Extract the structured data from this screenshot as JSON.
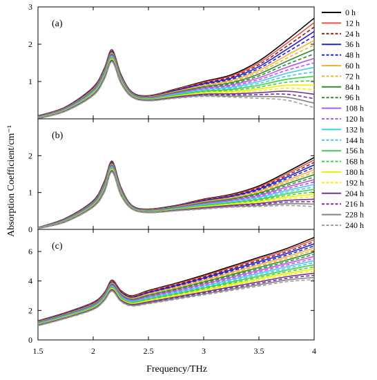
{
  "chart_data": {
    "type": "line",
    "xlabel": "Frequency/THz",
    "ylabel": "Absorption Coefficient/cm⁻¹",
    "xlim": [
      1.5,
      4
    ],
    "xticks": [
      "1.5",
      "2",
      "2.5",
      "3",
      "3.5",
      "4"
    ],
    "legend_position": "right",
    "series": [
      {
        "name": "0 h",
        "color": "#000000",
        "dash": "solid"
      },
      {
        "name": "12 h",
        "color": "#e8534a",
        "dash": "solid"
      },
      {
        "name": "24 h",
        "color": "#8b1a1a",
        "dash": "dashed"
      },
      {
        "name": "36 h",
        "color": "#1f1fd6",
        "dash": "solid"
      },
      {
        "name": "48 h",
        "color": "#1f1fd6",
        "dash": "dashed"
      },
      {
        "name": "60 h",
        "color": "#f0b030",
        "dash": "solid"
      },
      {
        "name": "72 h",
        "color": "#f0b030",
        "dash": "dashed"
      },
      {
        "name": "84 h",
        "color": "#2e8b2e",
        "dash": "solid"
      },
      {
        "name": "96 h",
        "color": "#2e8b2e",
        "dash": "dashed"
      },
      {
        "name": "108 h",
        "color": "#c050f0",
        "dash": "solid"
      },
      {
        "name": "120 h",
        "color": "#c050f0",
        "dash": "dashed"
      },
      {
        "name": "132 h",
        "color": "#40c8f0",
        "dash": "solid"
      },
      {
        "name": "144 h",
        "color": "#40c8f0",
        "dash": "dashed"
      },
      {
        "name": "156 h",
        "color": "#40d040",
        "dash": "solid"
      },
      {
        "name": "168 h",
        "color": "#40d040",
        "dash": "dashed"
      },
      {
        "name": "180 h",
        "color": "#f0f000",
        "dash": "solid"
      },
      {
        "name": "192 h",
        "color": "#f0f000",
        "dash": "dashed"
      },
      {
        "name": "204 h",
        "color": "#7030a0",
        "dash": "solid"
      },
      {
        "name": "216 h",
        "color": "#7030a0",
        "dash": "dashed"
      },
      {
        "name": "228 h",
        "color": "#808080",
        "dash": "solid"
      },
      {
        "name": "240 h",
        "color": "#a0a0a0",
        "dash": "dashed"
      }
    ],
    "panels": [
      {
        "label": "(a)",
        "ylim": [
          0,
          3
        ],
        "yticks": [
          "1",
          "2",
          "3"
        ],
        "peak_x": 2.17,
        "points_x": [
          1.5,
          1.75,
          2.0,
          2.1,
          2.17,
          2.25,
          2.35,
          2.5,
          2.75,
          3.0,
          3.25,
          3.5,
          3.75,
          4.0
        ],
        "first_series_y": [
          0.08,
          0.32,
          0.85,
          1.35,
          1.85,
          1.2,
          0.72,
          0.62,
          0.8,
          1.0,
          1.18,
          1.55,
          2.1,
          2.7
        ],
        "last_series_y": [
          0.0,
          0.2,
          0.62,
          1.05,
          1.52,
          0.95,
          0.58,
          0.48,
          0.55,
          0.6,
          0.58,
          0.55,
          0.5,
          0.3
        ]
      },
      {
        "label": "(b)",
        "ylim": [
          0,
          3
        ],
        "yticks": [
          "0",
          "1",
          "2"
        ],
        "peak_x": 2.17,
        "points_x": [
          1.5,
          1.75,
          2.0,
          2.1,
          2.17,
          2.25,
          2.35,
          2.5,
          2.75,
          3.0,
          3.25,
          3.5,
          3.75,
          4.0
        ],
        "first_series_y": [
          0.05,
          0.3,
          0.78,
          1.3,
          1.85,
          1.15,
          0.65,
          0.55,
          0.65,
          0.82,
          0.95,
          1.18,
          1.55,
          1.95
        ],
        "last_series_y": [
          0.02,
          0.2,
          0.6,
          1.0,
          1.55,
          0.92,
          0.55,
          0.45,
          0.5,
          0.55,
          0.6,
          0.62,
          0.65,
          0.62
        ]
      },
      {
        "label": "(c)",
        "ylim": [
          0,
          7.5
        ],
        "yticks": [
          "0",
          "2",
          "4",
          "6"
        ],
        "peak_x": 2.17,
        "points_x": [
          1.5,
          1.75,
          2.0,
          2.1,
          2.17,
          2.25,
          2.35,
          2.5,
          2.75,
          3.0,
          3.25,
          3.5,
          3.75,
          4.0
        ],
        "first_series_y": [
          1.3,
          1.85,
          2.55,
          3.2,
          4.05,
          3.35,
          3.0,
          3.35,
          3.85,
          4.4,
          5.0,
          5.6,
          6.2,
          6.95
        ],
        "last_series_y": [
          0.95,
          1.45,
          2.05,
          2.65,
          3.3,
          2.6,
          2.3,
          2.45,
          2.75,
          3.05,
          3.35,
          3.65,
          3.95,
          4.1
        ]
      }
    ]
  }
}
